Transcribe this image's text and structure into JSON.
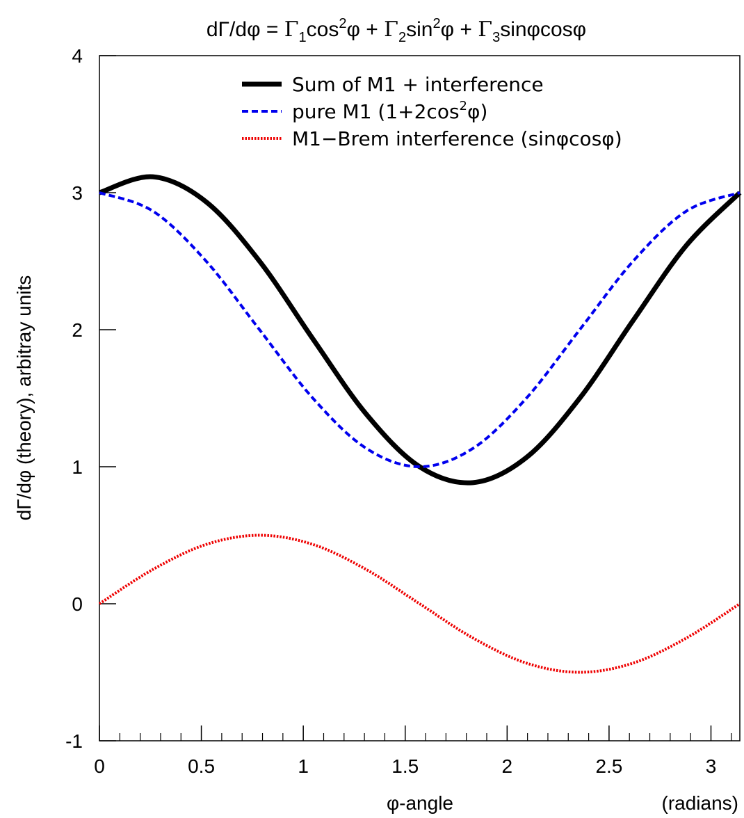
{
  "chart_data": {
    "type": "line",
    "title": {
      "prefix": "dΓ/dφ = ",
      "g1": "Γ",
      "s1": "1",
      "t1": "cos",
      "e1": "2",
      "p1": "φ + ",
      "g2": "Γ",
      "s2": "2",
      "t2": "sin",
      "e2": "2",
      "p2": "φ + ",
      "g3": "Γ",
      "s3": "3",
      "t3": "sinφcosφ"
    },
    "xlabel": "φ-angle",
    "xunit": "(radians)",
    "ylabel": "dΓ/dφ (theory), arbitray units",
    "xlim": [
      0,
      3.1416
    ],
    "ylim": [
      -1,
      4
    ],
    "xticks": [
      0,
      0.5,
      1,
      1.5,
      2,
      2.5,
      3
    ],
    "xtick_labels": [
      "0",
      "0.5",
      "1",
      "1.5",
      "2",
      "2.5",
      "3"
    ],
    "yticks": [
      -1,
      0,
      1,
      2,
      3,
      4
    ],
    "ytick_labels": [
      "-1",
      "0",
      "1",
      "2",
      "3",
      "4"
    ],
    "grid": false,
    "legend_position": "top",
    "x": [
      0,
      0.2618,
      0.5236,
      0.7854,
      1.0472,
      1.309,
      1.5708,
      1.8326,
      2.0944,
      2.3562,
      2.618,
      2.8798,
      3.1416
    ],
    "series": [
      {
        "name": "Sum of M1 + interference",
        "color": "#000000",
        "style": "solid",
        "values": [
          3.0,
          3.116,
          2.933,
          2.5,
          1.933,
          1.384,
          1.0,
          0.884,
          1.067,
          1.5,
          2.067,
          2.616,
          3.0
        ]
      },
      {
        "name": "pure M1 (1+2cos²φ)",
        "legend_label": {
          "a": "pure M1 (1+2cos",
          "b": "2",
          "c": "φ)"
        },
        "color": "#0000ee",
        "style": "dashed",
        "values": [
          3.0,
          2.866,
          2.5,
          2.0,
          1.5,
          1.134,
          1.0,
          1.134,
          1.5,
          2.0,
          2.5,
          2.866,
          3.0
        ]
      },
      {
        "name": "M1−Brem interference (sinφcosφ)",
        "color": "#ee0000",
        "style": "dotted",
        "values": [
          0.0,
          0.25,
          0.433,
          0.5,
          0.433,
          0.25,
          0.0,
          -0.25,
          -0.433,
          -0.5,
          -0.433,
          -0.25,
          0.0
        ]
      }
    ]
  }
}
